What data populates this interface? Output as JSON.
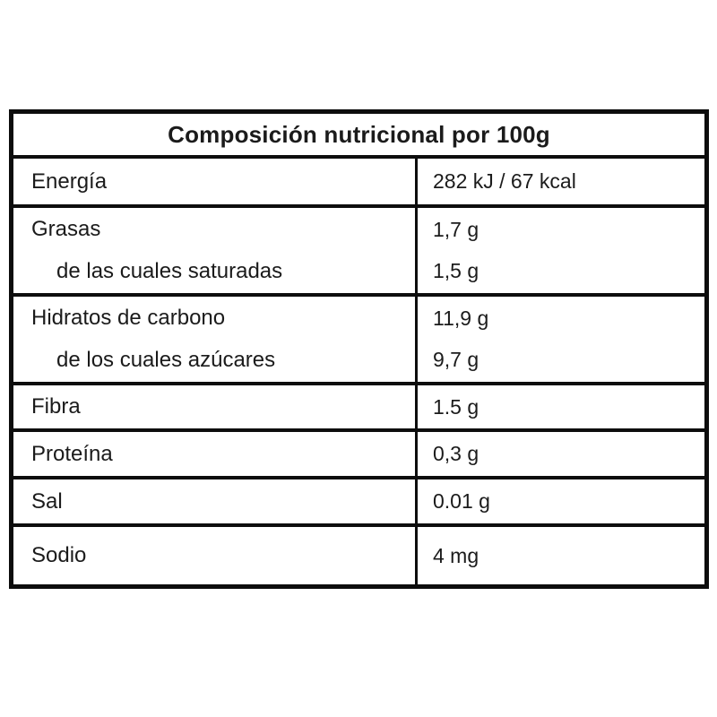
{
  "header": {
    "title": "Composición nutricional por 100g"
  },
  "table": {
    "rows": [
      {
        "label": "Energía",
        "value": "282 kJ / 67 kcal"
      },
      {
        "label": "Grasas",
        "value": "1,7 g",
        "sub_label": "de las cuales saturadas",
        "sub_value": "1,5 g"
      },
      {
        "label": "Hidratos de carbono",
        "value": "11,9 g",
        "sub_label": "de los cuales azúcares",
        "sub_value": "9,7 g"
      },
      {
        "label": "Fibra",
        "value": "1.5 g"
      },
      {
        "label": "Proteína",
        "value": "0,3 g"
      },
      {
        "label": "Sal",
        "value": "0.01 g"
      },
      {
        "label": "Sodio",
        "value": "4 mg"
      }
    ]
  },
  "colors": {
    "border": "#0d0d0d",
    "text": "#1b1b1b",
    "background": "#ffffff"
  }
}
